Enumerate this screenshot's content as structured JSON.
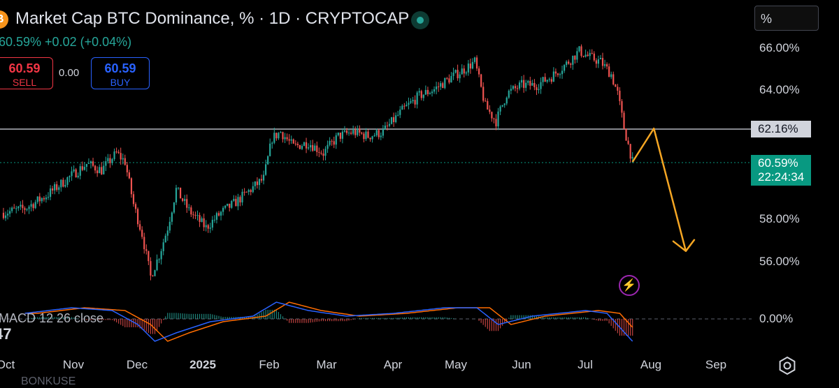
{
  "header": {
    "coin_icon": "bitcoin-icon",
    "title": "Market Cap BTC Dominance, % · 1D · CRYPTOCAP",
    "live_indicator": "live-dot-icon",
    "change_text": "60.59% +0.02 (+0.04%)",
    "scale_button": "%"
  },
  "trade": {
    "sell_price": "60.59",
    "sell_label": "SELL",
    "spread": "0.00",
    "buy_price": "60.59",
    "buy_label": "BUY"
  },
  "price_axis": {
    "ticks": [
      "66.00%",
      "64.00%",
      "58.00%",
      "56.00%"
    ],
    "ref_line_label": "62.16%",
    "current_price_label": "60.59%",
    "countdown": "22:24:34",
    "macd_zero_label": "0.00%"
  },
  "time_axis": [
    "Oct",
    "Nov",
    "Dec",
    "2025",
    "Feb",
    "Mar",
    "Apr",
    "May",
    "Jun",
    "Jul",
    "Aug",
    "Sep"
  ],
  "indicator": {
    "label": "MACD 12 26 close",
    "value_fragment": "47"
  },
  "footer_cut_text": "BONKUSE",
  "colors": {
    "up": "#26a69a",
    "down": "#ef5350",
    "projection": "#f5a623",
    "macd_line": "#2962ff",
    "signal_line": "#ff6d00",
    "ref_line": "#b2b5be"
  },
  "chart_data": {
    "type": "candlestick",
    "symbol": "CRYPTOCAP BTC Dominance",
    "interval": "1D",
    "unit": "%",
    "ylim": [
      54.5,
      66.8
    ],
    "reference_line": 62.16,
    "last_value": 60.59,
    "x_labels": [
      "Oct",
      "Nov",
      "Dec",
      "2025",
      "Feb",
      "Mar",
      "Apr",
      "May",
      "Jun",
      "Jul",
      "Aug",
      "Sep"
    ],
    "price_path": [
      [
        "Sep 30",
        58.2
      ],
      [
        "Oct 10",
        58.4
      ],
      [
        "Oct 20",
        59.0
      ],
      [
        "Oct 30",
        59.8
      ],
      [
        "Nov 08",
        60.5
      ],
      [
        "Nov 15",
        60.2
      ],
      [
        "Nov 22",
        61.0
      ],
      [
        "Nov 26",
        60.6
      ],
      [
        "Nov 30",
        58.6
      ],
      [
        "Dec 04",
        57.2
      ],
      [
        "Dec 08",
        55.2
      ],
      [
        "Dec 12",
        56.2
      ],
      [
        "Dec 16",
        57.5
      ],
      [
        "Dec 20",
        59.3
      ],
      [
        "Dec 26",
        58.3
      ],
      [
        "Jan 03",
        57.5
      ],
      [
        "Jan 10",
        58.2
      ],
      [
        "Jan 17",
        58.7
      ],
      [
        "Jan 24",
        59.3
      ],
      [
        "Jan 30",
        59.8
      ],
      [
        "Feb 03",
        61.7
      ],
      [
        "Feb 07",
        62.0
      ],
      [
        "Feb 13",
        61.3
      ],
      [
        "Feb 20",
        61.5
      ],
      [
        "Feb 27",
        61.0
      ],
      [
        "Mar 06",
        61.8
      ],
      [
        "Mar 13",
        62.0
      ],
      [
        "Mar 20",
        61.8
      ],
      [
        "Mar 27",
        62.0
      ],
      [
        "Apr 05",
        63.0
      ],
      [
        "Apr 13",
        63.7
      ],
      [
        "Apr 20",
        64.0
      ],
      [
        "Apr 27",
        64.5
      ],
      [
        "May 05",
        65.0
      ],
      [
        "May 09",
        65.3
      ],
      [
        "May 14",
        63.2
      ],
      [
        "May 19",
        62.5
      ],
      [
        "May 24",
        63.8
      ],
      [
        "May 31",
        64.2
      ],
      [
        "Jun 07",
        64.2
      ],
      [
        "Jun 14",
        64.6
      ],
      [
        "Jun 21",
        65.2
      ],
      [
        "Jun 27",
        65.8
      ],
      [
        "Jul 02",
        65.5
      ],
      [
        "Jul 07",
        65.3
      ],
      [
        "Jul 12",
        64.7
      ],
      [
        "Jul 15",
        63.8
      ],
      [
        "Jul 18",
        62.2
      ],
      [
        "Jul 22",
        60.59
      ]
    ],
    "projection_path": [
      [
        "Jul 22",
        60.59
      ],
      [
        "Aug 01",
        62.16
      ],
      [
        "Aug 16",
        56.4
      ]
    ],
    "macd": {
      "zero": 0,
      "path": [
        [
          "Oct 10",
          0.2
        ],
        [
          "Nov 01",
          0.4
        ],
        [
          "Nov 20",
          0.3
        ],
        [
          "Dec 02",
          -0.2
        ],
        [
          "Dec 10",
          -0.8
        ],
        [
          "Dec 20",
          -0.5
        ],
        [
          "Jan 05",
          -0.1
        ],
        [
          "Jan 25",
          0.1
        ],
        [
          "Feb 05",
          0.6
        ],
        [
          "Feb 20",
          0.3
        ],
        [
          "Mar 10",
          0.1
        ],
        [
          "Apr 01",
          0.2
        ],
        [
          "Apr 25",
          0.4
        ],
        [
          "May 10",
          0.4
        ],
        [
          "May 20",
          -0.2
        ],
        [
          "Jun 05",
          0.1
        ],
        [
          "Jun 30",
          0.3
        ],
        [
          "Jul 10",
          0.2
        ],
        [
          "Jul 22",
          -0.8
        ]
      ]
    }
  }
}
